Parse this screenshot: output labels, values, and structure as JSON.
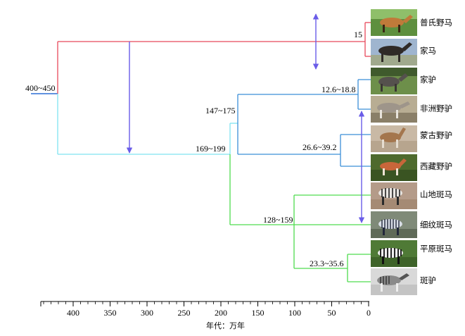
{
  "species": [
    {
      "label": "普氏野马",
      "photo": "przewalski-horse"
    },
    {
      "label": "家马",
      "photo": "domestic-horse"
    },
    {
      "label": "家驴",
      "photo": "domestic-donkey"
    },
    {
      "label": "非洲野驴",
      "photo": "african-wild-ass"
    },
    {
      "label": "蒙古野驴",
      "photo": "mongolian-wild-ass"
    },
    {
      "label": "西藏野驴",
      "photo": "kiang"
    },
    {
      "label": "山地斑马",
      "photo": "mountain-zebra"
    },
    {
      "label": "细纹斑马",
      "photo": "grevys-zebra"
    },
    {
      "label": "平原斑马",
      "photo": "plains-zebra"
    },
    {
      "label": "斑驴",
      "photo": "quagga"
    }
  ],
  "nodes": {
    "root": "400~450",
    "horses": "15",
    "ass_zebra": "169~199",
    "asses": "147~175",
    "african": "12.6~18.8",
    "asian": "26.6~39.2",
    "zebras": "128~159",
    "plains": "23.3~35.6"
  },
  "axis": {
    "title": "年代：万年",
    "ticks": [
      "400",
      "350",
      "300",
      "250",
      "200",
      "150",
      "100",
      "50",
      "0"
    ],
    "tick_values": [
      400,
      350,
      300,
      250,
      200,
      150,
      100,
      50,
      0
    ]
  },
  "colors": {
    "horse_lineage": "#e8495b",
    "ass_zebra_lineage": "#7fe3f0",
    "ass_lineage": "#3b8fd8",
    "zebra_lineage": "#4fdc4f",
    "root": "#2b6fd6",
    "arrows": "#6a5ce8"
  }
}
